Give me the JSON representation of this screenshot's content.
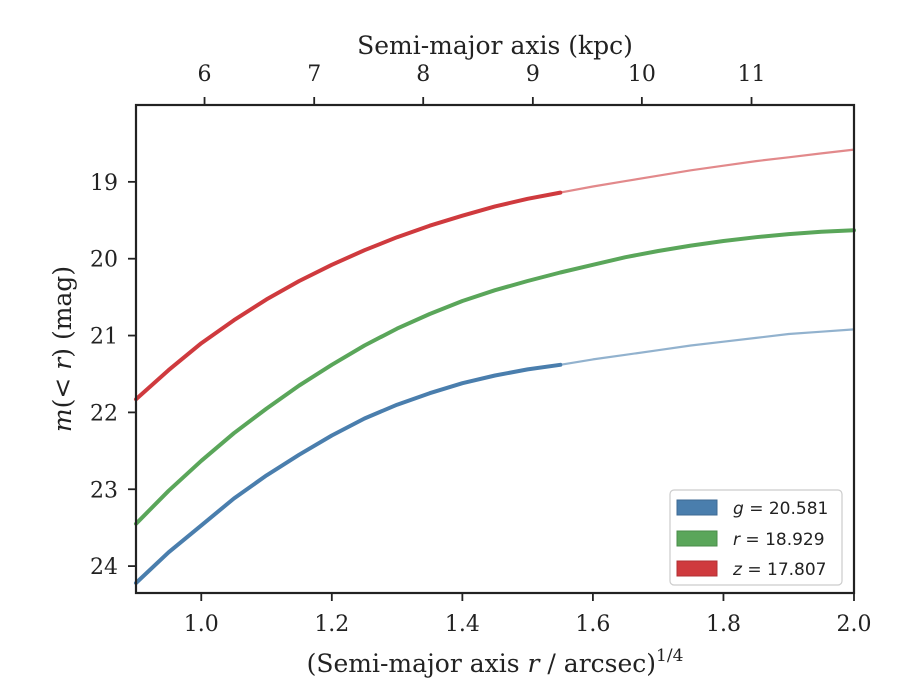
{
  "chart_data": {
    "type": "line",
    "xlabel": "(Semi-major axis r / arcsec)¹ᐟ⁴",
    "xlabel_parts": {
      "prefix": "(Semi-major axis ",
      "italic": "r",
      "suffix": " / arcsec)",
      "sup": "1/4"
    },
    "ylabel_parts": {
      "italic": "m",
      "main": "(< ",
      "italic2": "r",
      "close": ")",
      "unit": " (mag)"
    },
    "top_xlabel": "Semi-major axis (kpc)",
    "xlim": [
      0.9,
      2.0
    ],
    "ylim": [
      24.35,
      18.0
    ],
    "y_inverted": true,
    "x_ticks": [
      "1.0",
      "1.2",
      "1.4",
      "1.6",
      "1.8",
      "2.0"
    ],
    "x_tick_values": [
      1.0,
      1.2,
      1.4,
      1.6,
      1.8,
      2.0
    ],
    "y_ticks": [
      "19",
      "20",
      "21",
      "22",
      "23",
      "24"
    ],
    "y_tick_values": [
      19,
      20,
      21,
      22,
      23,
      24
    ],
    "top_ticks": [
      "6",
      "7",
      "8",
      "9",
      "10",
      "11"
    ],
    "top_tick_positions_x": [
      1.005,
      1.173,
      1.34,
      1.508,
      1.675,
      1.843
    ],
    "x": [
      0.9,
      0.95,
      1.0,
      1.05,
      1.1,
      1.15,
      1.2,
      1.25,
      1.3,
      1.35,
      1.4,
      1.45,
      1.5,
      1.55,
      1.6,
      1.65,
      1.7,
      1.75,
      1.8,
      1.85,
      1.9,
      1.95,
      2.0
    ],
    "measured_until_x": 1.55,
    "series": [
      {
        "name": "g = 20.581",
        "label_var": "g",
        "label_val": "20.581",
        "color": "#4a7ead",
        "values": [
          24.22,
          23.82,
          23.47,
          23.12,
          22.82,
          22.55,
          22.3,
          22.08,
          21.9,
          21.75,
          21.62,
          21.52,
          21.44,
          21.38,
          21.31,
          21.25,
          21.19,
          21.13,
          21.08,
          21.03,
          20.98,
          20.95,
          20.92
        ]
      },
      {
        "name": "r = 18.929",
        "label_var": "r",
        "label_val": "18.929",
        "color": "#5aa65a",
        "values": [
          23.45,
          23.02,
          22.63,
          22.27,
          21.95,
          21.65,
          21.38,
          21.13,
          20.91,
          20.72,
          20.55,
          20.41,
          20.29,
          20.18,
          20.08,
          19.98,
          19.9,
          19.83,
          19.77,
          19.72,
          19.68,
          19.65,
          19.63
        ]
      },
      {
        "name": "z = 17.807",
        "label_var": "z",
        "label_val": "17.807",
        "color": "#cf3a3e",
        "values": [
          21.83,
          21.45,
          21.1,
          20.8,
          20.53,
          20.29,
          20.08,
          19.89,
          19.72,
          19.57,
          19.44,
          19.32,
          19.22,
          19.14,
          19.06,
          18.99,
          18.92,
          18.85,
          18.79,
          18.73,
          18.68,
          18.63,
          18.58
        ]
      }
    ],
    "grid": false,
    "legend_position": "bottom-right"
  }
}
